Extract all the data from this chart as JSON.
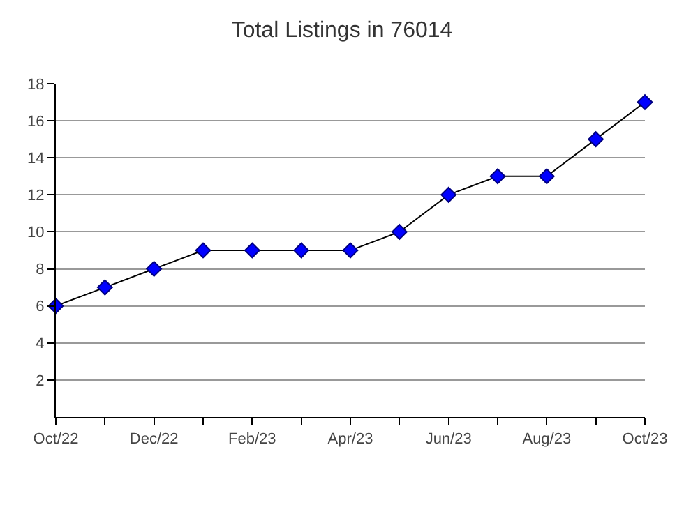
{
  "chart_data": {
    "type": "line",
    "title": "Total Listings in 76014",
    "categories": [
      "Oct/22",
      null,
      "Dec/22",
      null,
      "Feb/23",
      null,
      "Apr/23",
      null,
      "Jun/23",
      null,
      "Aug/23",
      null,
      "Oct/23"
    ],
    "series": [
      {
        "color": "#0000ff",
        "values": [
          6,
          7,
          8,
          9,
          9,
          9,
          9,
          10,
          12,
          13,
          13,
          15,
          17
        ]
      }
    ],
    "ylim": [
      0,
      18
    ],
    "yticks": [
      2,
      4,
      6,
      8,
      10,
      12,
      14,
      16,
      18
    ],
    "grid": "y",
    "marker": "diamond",
    "line_style": "solid"
  }
}
